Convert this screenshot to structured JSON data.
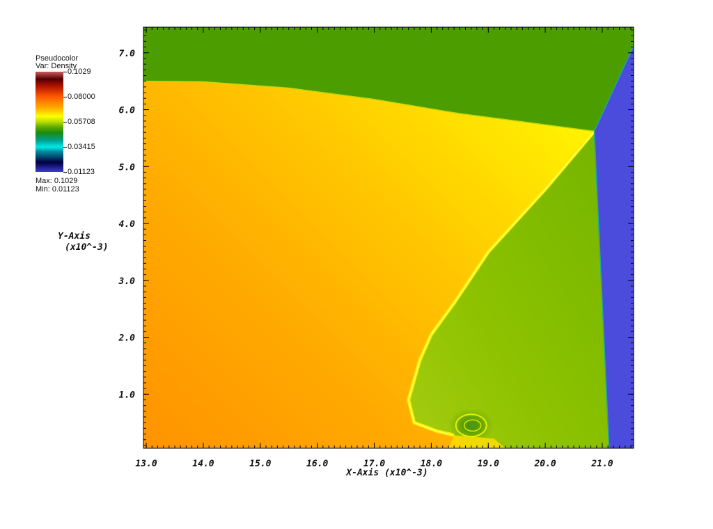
{
  "chart_data": {
    "type": "heatmap",
    "plot_kind": "Pseudocolor",
    "variable_label": "Var: Density",
    "xlabel": "X-Axis (x10^-3)",
    "ylabel": "Y-Axis",
    "ylabel_unit": "(x10^-3)",
    "xlim": [
      12.95,
      21.55
    ],
    "ylim": [
      0.05,
      7.45
    ],
    "x_ticks": [
      "13.0",
      "14.0",
      "15.0",
      "16.0",
      "17.0",
      "18.0",
      "19.0",
      "20.0",
      "21.0"
    ],
    "y_ticks": [
      "1.0",
      "2.0",
      "3.0",
      "4.0",
      "5.0",
      "6.0",
      "7.0"
    ],
    "colorbar": {
      "max_label": "0.1029",
      "labels": [
        "0.1029",
        "0.08000",
        "0.05708",
        "0.03415",
        "0.01123"
      ],
      "label_values": [
        0.1029,
        0.08,
        0.05708,
        0.03415,
        0.01123
      ],
      "stats_max": "Max: 0.1029",
      "stats_min": "Min: 0.01123",
      "min": 0.01123,
      "max": 0.1029,
      "stops": [
        {
          "value": 0.01123,
          "color": "#3b3bd4"
        },
        {
          "value": 0.02,
          "color": "#000040"
        },
        {
          "value": 0.03,
          "color": "#008fa0"
        },
        {
          "value": 0.0341,
          "color": "#00e8e8"
        },
        {
          "value": 0.04,
          "color": "#00a090"
        },
        {
          "value": 0.047,
          "color": "#1a8a10"
        },
        {
          "value": 0.052,
          "color": "#5aa800"
        },
        {
          "value": 0.0571,
          "color": "#b8dc00"
        },
        {
          "value": 0.062,
          "color": "#ffff00"
        },
        {
          "value": 0.07,
          "color": "#ffaa00"
        },
        {
          "value": 0.08,
          "color": "#ff5a00"
        },
        {
          "value": 0.09,
          "color": "#b01000"
        },
        {
          "value": 0.096,
          "color": "#500000"
        },
        {
          "value": 0.1029,
          "color": "#d05a5a"
        }
      ]
    },
    "regions": {
      "ambient_top_color": "#4c9e00",
      "post_shock_colors": [
        "#ff9500",
        "#ffad00",
        "#ffcb00",
        "#ffe800",
        "#f8f500"
      ],
      "mach_stem_region_colors": [
        "#7ab800",
        "#90c400",
        "#a8cf10"
      ],
      "inflow_color": "#4b4bdc",
      "vortex_core_color": "#4e9a10"
    },
    "shocks": {
      "incident_shock": [
        [
          21.7,
          7.45
        ],
        [
          20.86,
          5.62
        ]
      ],
      "mach_stem": [
        [
          20.86,
          5.62
        ],
        [
          21.12,
          0.05
        ]
      ],
      "contact_surface_top": [
        [
          12.95,
          6.5
        ],
        [
          14.0,
          6.49
        ],
        [
          15.5,
          6.38
        ],
        [
          17.0,
          6.18
        ],
        [
          18.5,
          5.93
        ],
        [
          19.5,
          5.8
        ],
        [
          20.86,
          5.62
        ]
      ],
      "reflected_shock": [
        [
          20.86,
          5.62
        ],
        [
          20.0,
          4.6
        ],
        [
          19.0,
          3.5
        ],
        [
          18.4,
          2.6
        ],
        [
          18.0,
          2.05
        ],
        [
          17.8,
          1.6
        ],
        [
          17.6,
          0.9
        ],
        [
          17.7,
          0.5
        ],
        [
          18.1,
          0.35
        ],
        [
          18.4,
          0.28
        ]
      ],
      "vortex_center": [
        18.7,
        0.45
      ]
    }
  }
}
